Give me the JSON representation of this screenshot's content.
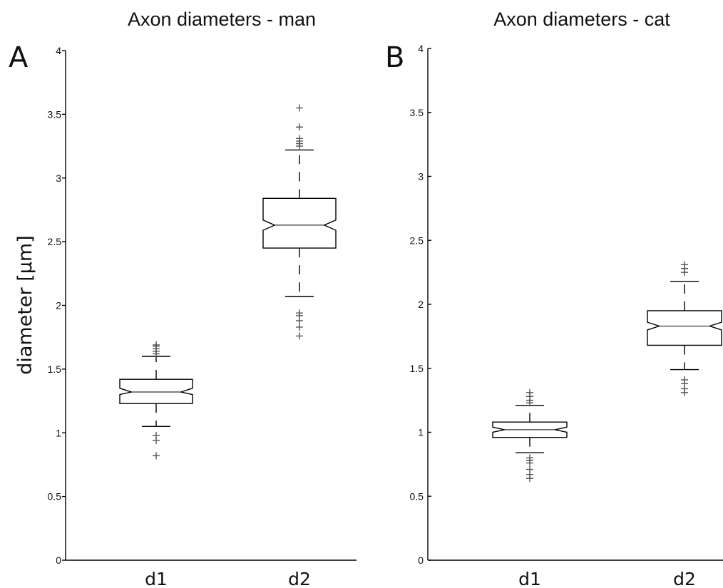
{
  "figure": {
    "ylabel": "diameter [μm]"
  },
  "chart_data": [
    {
      "type": "box",
      "panel_label": "A",
      "title": "Axon diameters - man",
      "xlabel": "",
      "ylabel": "diameter [μm]",
      "ylim": [
        0,
        4
      ],
      "yticks": [
        "0",
        "0.5",
        "1",
        "1.5",
        "2",
        "2.5",
        "3",
        "3.5",
        "4"
      ],
      "notched": true,
      "grid": false,
      "categories": [
        "d1",
        "d2"
      ],
      "boxes": [
        {
          "category": "d1",
          "whisker_low": 1.05,
          "q1": 1.23,
          "notch_low": 1.3,
          "median": 1.32,
          "notch_high": 1.35,
          "q3": 1.42,
          "whisker_high": 1.6,
          "outliers": [
            0.82,
            0.94,
            0.98,
            1.62,
            1.64,
            1.66,
            1.68,
            1.69
          ]
        },
        {
          "category": "d2",
          "whisker_low": 2.07,
          "q1": 2.45,
          "notch_low": 2.59,
          "median": 2.63,
          "notch_high": 2.67,
          "q3": 2.84,
          "whisker_high": 3.22,
          "outliers": [
            1.76,
            1.83,
            1.88,
            1.92,
            1.94,
            3.25,
            3.27,
            3.29,
            3.31,
            3.4,
            3.55
          ]
        }
      ]
    },
    {
      "type": "box",
      "panel_label": "B",
      "title": "Axon diameters - cat",
      "xlabel": "",
      "ylabel": "",
      "ylim": [
        0,
        4
      ],
      "yticks": [
        "0",
        "0.5",
        "1",
        "1.5",
        "2",
        "2.5",
        "3",
        "3.5",
        "4"
      ],
      "notched": true,
      "grid": false,
      "categories": [
        "d1",
        "d2"
      ],
      "boxes": [
        {
          "category": "d1",
          "whisker_low": 0.84,
          "q1": 0.96,
          "notch_low": 1.0,
          "median": 1.02,
          "notch_high": 1.04,
          "q3": 1.08,
          "whisker_high": 1.21,
          "outliers": [
            0.64,
            0.67,
            0.71,
            0.76,
            0.78,
            0.8,
            1.23,
            1.25,
            1.28,
            1.31
          ]
        },
        {
          "category": "d2",
          "whisker_low": 1.49,
          "q1": 1.68,
          "notch_low": 1.8,
          "median": 1.83,
          "notch_high": 1.86,
          "q3": 1.95,
          "whisker_high": 2.18,
          "outliers": [
            1.31,
            1.34,
            1.38,
            1.41,
            2.25,
            2.28,
            2.31
          ]
        }
      ]
    }
  ]
}
